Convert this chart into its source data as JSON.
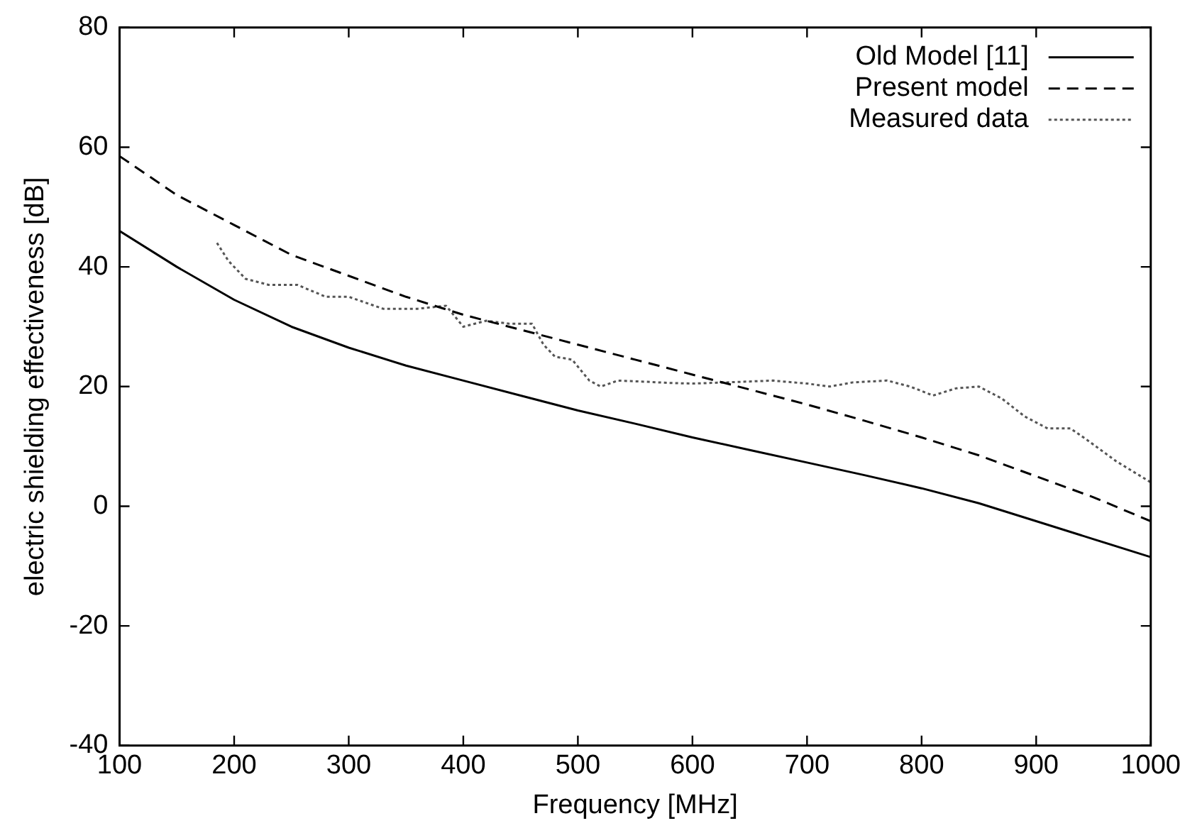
{
  "chart_data": {
    "type": "line",
    "xlabel": "Frequency [MHz]",
    "ylabel": "electric shielding effectiveness [dB]",
    "xlim": [
      100,
      1000
    ],
    "xticks": [
      100,
      200,
      300,
      400,
      500,
      600,
      700,
      800,
      900,
      1000
    ],
    "ylim": [
      -40,
      80
    ],
    "yticks": [
      -40,
      -20,
      0,
      20,
      40,
      60,
      80
    ],
    "grid": false,
    "legend": "top right",
    "marker": "none",
    "series": [
      {
        "name": "Old Model [11]",
        "color": "#000000",
        "line_style": "solid",
        "x": [
          100,
          150,
          200,
          250,
          300,
          350,
          400,
          450,
          500,
          550,
          600,
          650,
          700,
          750,
          800,
          850,
          900,
          950,
          1000
        ],
        "values": [
          46,
          40,
          34.5,
          30,
          26.5,
          23.5,
          21,
          18.5,
          16,
          13.8,
          11.5,
          9.4,
          7.3,
          5.2,
          3,
          0.5,
          -2.5,
          -5.5,
          -8.5
        ]
      },
      {
        "name": "Present model",
        "color": "#000000",
        "line_style": "dashed",
        "x": [
          100,
          150,
          200,
          250,
          300,
          350,
          400,
          450,
          500,
          550,
          600,
          650,
          700,
          750,
          800,
          850,
          900,
          950,
          1000
        ],
        "values": [
          58.5,
          52,
          47,
          42,
          38.5,
          35,
          32,
          29.5,
          27,
          24.5,
          22,
          19.5,
          17,
          14.3,
          11.5,
          8.5,
          5,
          1.5,
          -2.5
        ]
      },
      {
        "name": "Measured data",
        "color": "#555555",
        "line_style": "dotted",
        "x": [
          185,
          195,
          210,
          230,
          255,
          280,
          300,
          330,
          360,
          385,
          400,
          410,
          420,
          440,
          460,
          470,
          480,
          495,
          510,
          520,
          535,
          560,
          580,
          600,
          630,
          670,
          700,
          720,
          740,
          770,
          790,
          810,
          830,
          850,
          870,
          890,
          910,
          930,
          945,
          970,
          1000
        ],
        "values": [
          44,
          41,
          38,
          37,
          37,
          35,
          35,
          33,
          33,
          33.5,
          30,
          30.5,
          31,
          30.5,
          30.5,
          27,
          25,
          24.5,
          21,
          20,
          21,
          20.8,
          20.6,
          20.5,
          20.7,
          21,
          20.5,
          20,
          20.7,
          21,
          20,
          18.5,
          19.7,
          20,
          18,
          15,
          13,
          13,
          11,
          7.5,
          4
        ]
      }
    ]
  }
}
